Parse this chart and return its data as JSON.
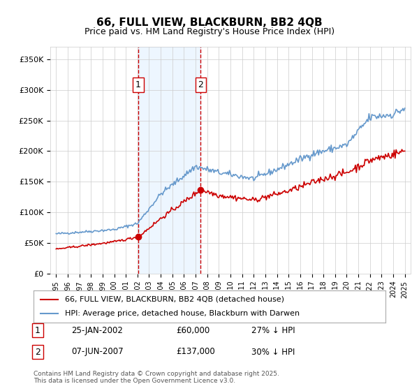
{
  "title": "66, FULL VIEW, BLACKBURN, BB2 4QB",
  "subtitle": "Price paid vs. HM Land Registry's House Price Index (HPI)",
  "legend_line1": "66, FULL VIEW, BLACKBURN, BB2 4QB (detached house)",
  "legend_line2": "HPI: Average price, detached house, Blackburn with Darwen",
  "footnote": "Contains HM Land Registry data © Crown copyright and database right 2025.\nThis data is licensed under the Open Government Licence v3.0.",
  "sale1_label": "1",
  "sale1_date": "25-JAN-2002",
  "sale1_price": "£60,000",
  "sale1_note": "27% ↓ HPI",
  "sale2_label": "2",
  "sale2_date": "07-JUN-2007",
  "sale2_price": "£137,000",
  "sale2_note": "30% ↓ HPI",
  "sale1_x": 2002.07,
  "sale1_y": 60000,
  "sale2_x": 2007.44,
  "sale2_y": 137000,
  "red_line_color": "#cc0000",
  "blue_line_color": "#6699cc",
  "marker_color": "#cc0000",
  "vline_color": "#cc0000",
  "shade_color": "#ddeeff",
  "ylim": [
    0,
    370000
  ],
  "xlim_start": 1994.5,
  "xlim_end": 2025.5,
  "yticks": [
    0,
    50000,
    100000,
    150000,
    200000,
    250000,
    300000,
    350000
  ],
  "ytick_labels": [
    "£0",
    "£50K",
    "£100K",
    "£150K",
    "£200K",
    "£250K",
    "£300K",
    "£350K"
  ],
  "xticks": [
    1995,
    1996,
    1997,
    1998,
    1999,
    2000,
    2001,
    2002,
    2003,
    2004,
    2005,
    2006,
    2007,
    2008,
    2009,
    2010,
    2011,
    2012,
    2013,
    2014,
    2015,
    2016,
    2017,
    2018,
    2019,
    2020,
    2021,
    2022,
    2023,
    2024,
    2025
  ],
  "background_color": "#ffffff",
  "grid_color": "#cccccc"
}
